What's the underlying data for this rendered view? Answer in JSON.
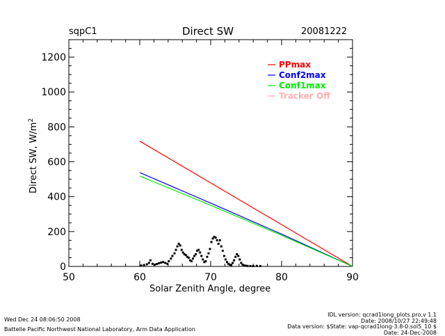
{
  "header": {
    "site": "sqpC1",
    "title": "Direct SW",
    "date": "20081222"
  },
  "footer": {
    "left": [
      "Wed Dec 24 08:06:50 2008",
      "Battelle Pacific Northwest National Laboratory, Arm Data Application"
    ],
    "right": [
      "IDL version: qcrad1long_plots.pro,v 1.1",
      "Date: 2008/10/27 22:49:48",
      "Data version: $State: vap-qcrad1long-3.8-0.sol5_10 $",
      "Date: 24-Dec-2008"
    ]
  },
  "chart_data": {
    "type": "line",
    "title": "Direct SW",
    "xlabel": "Solar Zenith Angle, degree",
    "ylabel": "Direct SW, W/m²",
    "xlim": [
      50,
      90
    ],
    "ylim": [
      0,
      1300
    ],
    "x_ticks": [
      50,
      60,
      70,
      80,
      90
    ],
    "y_ticks": [
      0,
      200,
      400,
      600,
      800,
      1000,
      1200
    ],
    "x_tick_labels": [
      "50",
      "60",
      "70",
      "80",
      "90"
    ],
    "y_tick_labels": [
      "0",
      "200",
      "400",
      "600",
      "800",
      "1000",
      "1200"
    ],
    "grid": false,
    "legend_position": "top-right",
    "series": [
      {
        "name": "PPmax",
        "color": "#ff0000",
        "x": [
          60,
          90
        ],
        "y": [
          718,
          0
        ]
      },
      {
        "name": "Conf2max",
        "color": "#0000ff",
        "x": [
          60,
          70,
          80,
          90
        ],
        "y": [
          538,
          363,
          185,
          0
        ]
      },
      {
        "name": "Conf1max",
        "color": "#00ee00",
        "x": [
          60,
          70,
          80,
          90
        ],
        "y": [
          518,
          350,
          178,
          0
        ]
      },
      {
        "name": "Tracker Off",
        "color": "#ffb0b0",
        "x": [],
        "y": []
      }
    ],
    "scatter": {
      "name": "Measured Direct SW",
      "color": "#000000",
      "x": [
        60.2,
        60.6,
        61.0,
        61.3,
        61.5,
        61.8,
        62.1,
        62.4,
        62.7,
        63.0,
        63.3,
        63.6,
        63.9,
        64.1,
        64.4,
        64.6,
        64.9,
        65.1,
        65.3,
        65.5,
        65.7,
        65.9,
        66.1,
        66.3,
        66.5,
        66.7,
        66.9,
        67.1,
        67.3,
        67.5,
        67.7,
        67.9,
        68.1,
        68.3,
        68.5,
        68.7,
        68.9,
        69.1,
        69.3,
        69.5,
        69.7,
        69.9,
        70.1,
        70.3,
        70.5,
        70.7,
        70.9,
        71.1,
        71.3,
        71.5,
        71.7,
        71.9,
        72.1,
        72.3,
        72.5,
        72.7,
        72.9,
        73.1,
        73.3,
        73.5,
        73.7,
        73.9,
        74.1,
        74.3,
        74.5,
        74.7,
        74.9,
        75.2,
        75.6,
        76.0,
        76.5,
        77.0
      ],
      "y": [
        5,
        8,
        12,
        20,
        35,
        15,
        10,
        14,
        18,
        22,
        25,
        20,
        15,
        30,
        45,
        60,
        75,
        95,
        115,
        130,
        120,
        95,
        80,
        70,
        65,
        55,
        50,
        35,
        30,
        45,
        60,
        70,
        90,
        95,
        80,
        60,
        40,
        25,
        30,
        55,
        75,
        100,
        140,
        160,
        170,
        165,
        150,
        130,
        150,
        115,
        90,
        60,
        40,
        25,
        15,
        10,
        8,
        20,
        35,
        55,
        70,
        60,
        40,
        20,
        10,
        6,
        4,
        3,
        2,
        2,
        3,
        2
      ]
    }
  }
}
